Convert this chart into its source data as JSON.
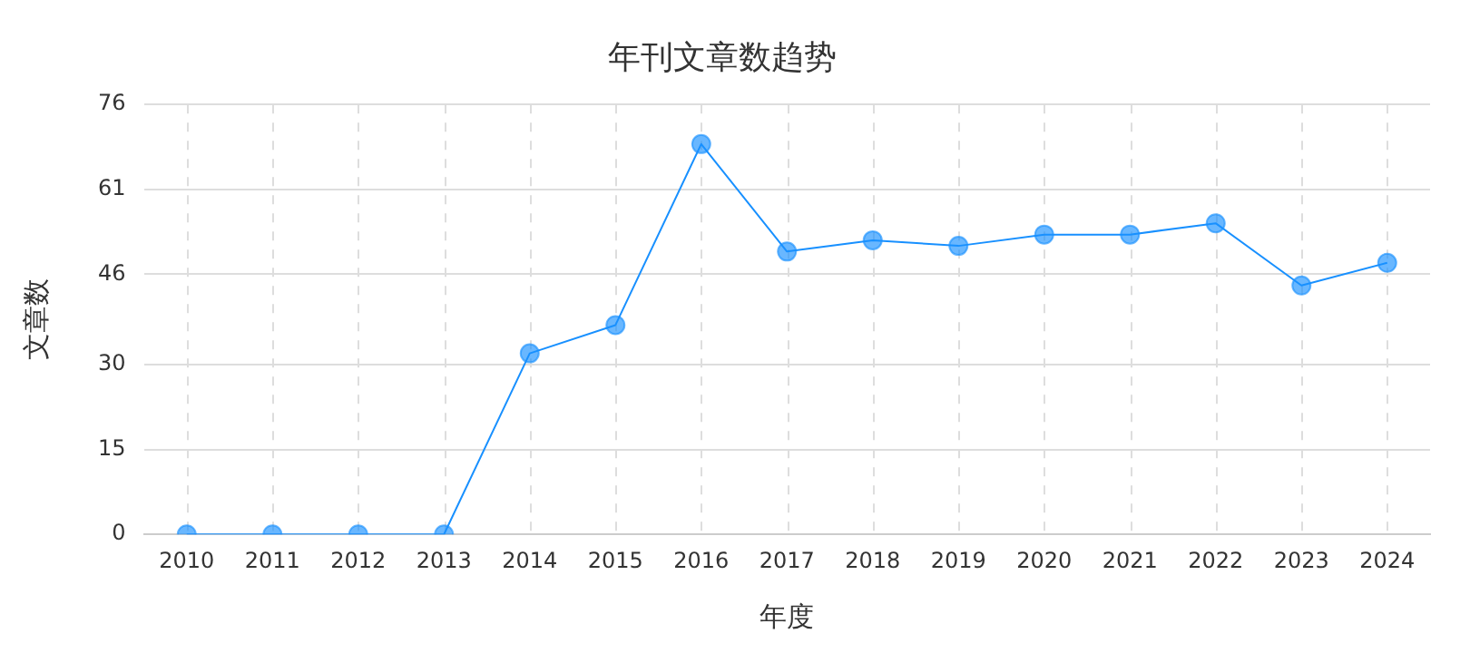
{
  "chart_data": {
    "type": "line",
    "title": "年刊文章数趋势",
    "xlabel": "年度",
    "ylabel": "文章数",
    "categories": [
      "2010",
      "2011",
      "2012",
      "2013",
      "2014",
      "2015",
      "2016",
      "2017",
      "2018",
      "2019",
      "2020",
      "2021",
      "2022",
      "2023",
      "2024"
    ],
    "series": [
      {
        "color": "#1890ff",
        "values": [
          0,
          0,
          0,
          0,
          32,
          37,
          69,
          50,
          52,
          51,
          53,
          53,
          55,
          44,
          48
        ]
      }
    ],
    "ylim": [
      0,
      76
    ],
    "yticks": [
      0,
      15,
      30,
      46,
      61,
      76
    ],
    "grid": true,
    "marker": "circle",
    "line_style": "solid",
    "legend": false
  }
}
